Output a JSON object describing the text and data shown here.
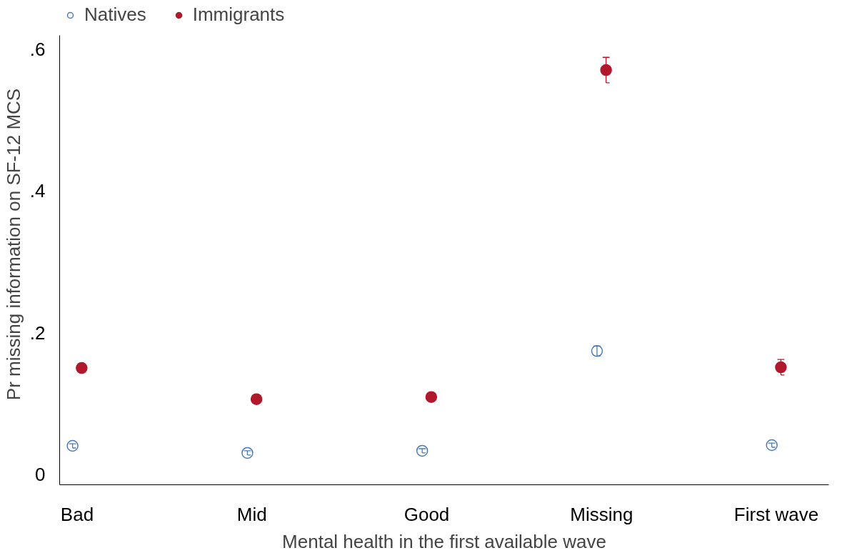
{
  "chart_data": {
    "type": "scatter",
    "xlabel": "Mental health in the first available wave",
    "ylabel": "Pr missing information on SF-12 MCS",
    "categories": [
      "Bad",
      "Mid",
      "Good",
      "Missing",
      "First wave"
    ],
    "series": [
      {
        "name": "Natives",
        "color": "#4a7bb7",
        "values": [
          0.04,
          0.03,
          0.033,
          0.174,
          0.041
        ],
        "errors": [
          0.003,
          0.003,
          0.003,
          0.007,
          0.003
        ]
      },
      {
        "name": "Immigrants",
        "color": "#b2182b",
        "values": [
          0.15,
          0.106,
          0.109,
          0.571,
          0.151
        ],
        "errors": [
          0.006,
          0.005,
          0.005,
          0.018,
          0.011
        ]
      }
    ],
    "ylim": [
      -0.015,
      0.62
    ],
    "yticks": [
      0,
      {
        "value": 0.2,
        "label": ".2"
      },
      {
        "value": 0.4,
        "label": ".4"
      },
      {
        "value": 0.6,
        "label": ".6"
      }
    ],
    "grid": false,
    "legend": "top left",
    "marker": "circle"
  }
}
